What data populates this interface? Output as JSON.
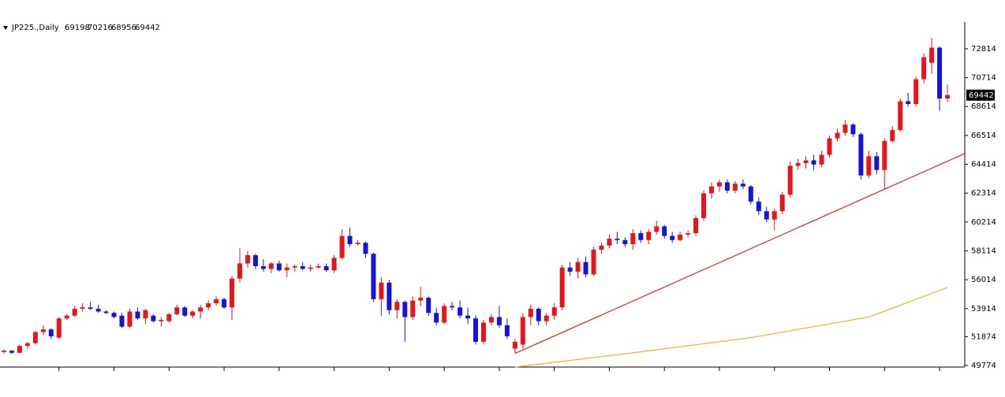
{
  "chart_data": {
    "type": "candlestick",
    "symbol": "JP225.,Daily",
    "up_color": "#e8141a",
    "down_color": "#1414d8",
    "ylim": [
      49660,
      74760
    ],
    "yticks": [
      49774,
      51874,
      53914,
      56014,
      58114,
      60214,
      62314,
      64414,
      66514,
      68614,
      70714,
      72814
    ],
    "xticks": [
      7,
      14,
      21,
      28,
      35,
      42,
      49,
      56,
      63,
      70,
      77,
      84,
      91,
      98,
      105,
      112,
      119
    ],
    "ohlc": [
      [
        50750,
        50950,
        50650,
        50850
      ],
      [
        50850,
        50900,
        50600,
        50700
      ],
      [
        50700,
        51300,
        50650,
        51200
      ],
      [
        51200,
        51500,
        51000,
        51400
      ],
      [
        51400,
        52300,
        51300,
        52200
      ],
      [
        52200,
        52700,
        52000,
        52400
      ],
      [
        52400,
        52500,
        51700,
        51900
      ],
      [
        51800,
        53300,
        51700,
        53200
      ],
      [
        53200,
        53500,
        53100,
        53400
      ],
      [
        53400,
        54100,
        53300,
        53900
      ],
      [
        53900,
        54300,
        53700,
        54000
      ],
      [
        54000,
        54400,
        53800,
        53900
      ],
      [
        53900,
        54200,
        53600,
        53700
      ],
      [
        53700,
        53800,
        53500,
        53600
      ],
      [
        53600,
        53700,
        53200,
        53300
      ],
      [
        53400,
        53600,
        52500,
        52600
      ],
      [
        52600,
        53900,
        52500,
        53700
      ],
      [
        53700,
        54000,
        53100,
        53200
      ],
      [
        53200,
        53900,
        52800,
        53800
      ],
      [
        53400,
        53500,
        52900,
        53000
      ],
      [
        53000,
        53300,
        52600,
        53100
      ],
      [
        53000,
        53600,
        52900,
        53500
      ],
      [
        53500,
        54200,
        53400,
        54000
      ],
      [
        54000,
        54100,
        53300,
        53400
      ],
      [
        53400,
        53800,
        53200,
        53700
      ],
      [
        53700,
        54200,
        53200,
        54000
      ],
      [
        54000,
        54500,
        53800,
        54300
      ],
      [
        54300,
        54800,
        54100,
        54600
      ],
      [
        54600,
        54700,
        53900,
        54000
      ],
      [
        54000,
        56300,
        53100,
        56100
      ],
      [
        56100,
        58300,
        55800,
        57200
      ],
      [
        57200,
        58100,
        56900,
        57800
      ],
      [
        57800,
        57900,
        56800,
        57000
      ],
      [
        57000,
        57500,
        56600,
        56800
      ],
      [
        56800,
        57300,
        56500,
        57200
      ],
      [
        57200,
        57400,
        56600,
        56700
      ],
      [
        56700,
        57200,
        56200,
        56900
      ],
      [
        56900,
        57100,
        56600,
        57000
      ],
      [
        57000,
        57300,
        56700,
        56800
      ],
      [
        56800,
        57100,
        56600,
        56900
      ],
      [
        56900,
        57200,
        56800,
        57000
      ],
      [
        57000,
        57200,
        56600,
        56700
      ],
      [
        56700,
        57800,
        56500,
        57600
      ],
      [
        57600,
        59700,
        57500,
        59200
      ],
      [
        59200,
        59800,
        58400,
        58600
      ],
      [
        58600,
        58900,
        58500,
        58700
      ],
      [
        58700,
        58800,
        57600,
        57900
      ],
      [
        57900,
        58000,
        54400,
        54600
      ],
      [
        54600,
        56200,
        53400,
        55800
      ],
      [
        55800,
        56000,
        53500,
        53800
      ],
      [
        53800,
        54600,
        53200,
        54400
      ],
      [
        54400,
        54500,
        51500,
        53300
      ],
      [
        53300,
        54800,
        53100,
        54500
      ],
      [
        54500,
        55500,
        54100,
        54700
      ],
      [
        54700,
        54800,
        53400,
        53600
      ],
      [
        53600,
        54000,
        52700,
        52900
      ],
      [
        52900,
        54300,
        52800,
        54100
      ],
      [
        54100,
        54400,
        53800,
        54000
      ],
      [
        54000,
        54500,
        53200,
        53400
      ],
      [
        53400,
        54000,
        52800,
        53200
      ],
      [
        53200,
        53400,
        51300,
        51500
      ],
      [
        51500,
        53100,
        51300,
        52900
      ],
      [
        52900,
        53500,
        52700,
        53300
      ],
      [
        53300,
        54100,
        52500,
        52700
      ],
      [
        52700,
        53200,
        51700,
        51900
      ],
      [
        51000,
        51700,
        50700,
        51500
      ],
      [
        51300,
        53600,
        51000,
        53300
      ],
      [
        53300,
        54200,
        52700,
        53900
      ],
      [
        53900,
        54000,
        52700,
        53000
      ],
      [
        53000,
        53600,
        52700,
        53400
      ],
      [
        53400,
        54300,
        53100,
        54000
      ],
      [
        54000,
        57100,
        53800,
        56900
      ],
      [
        56900,
        57300,
        56300,
        56600
      ],
      [
        56600,
        57600,
        56100,
        57300
      ],
      [
        57300,
        57700,
        56200,
        56400
      ],
      [
        56400,
        58400,
        56300,
        58200
      ],
      [
        58200,
        58700,
        57900,
        58500
      ],
      [
        58500,
        59300,
        58300,
        59000
      ],
      [
        59000,
        59500,
        58600,
        58900
      ],
      [
        58900,
        59100,
        58400,
        58600
      ],
      [
        58600,
        59700,
        58200,
        59400
      ],
      [
        59400,
        59600,
        58700,
        58900
      ],
      [
        58900,
        59700,
        58600,
        59500
      ],
      [
        59500,
        60300,
        59300,
        59900
      ],
      [
        59900,
        60000,
        59000,
        59200
      ],
      [
        59200,
        59500,
        58700,
        58900
      ],
      [
        58900,
        59500,
        58800,
        59300
      ],
      [
        59300,
        59600,
        59100,
        59400
      ],
      [
        59400,
        60700,
        59200,
        60500
      ],
      [
        60500,
        62500,
        60300,
        62300
      ],
      [
        62300,
        63100,
        61900,
        62800
      ],
      [
        62800,
        63300,
        62400,
        63100
      ],
      [
        63100,
        63300,
        62300,
        62500
      ],
      [
        62500,
        63200,
        62300,
        63000
      ],
      [
        63000,
        63300,
        62600,
        62800
      ],
      [
        62800,
        62900,
        61500,
        61700
      ],
      [
        61700,
        62000,
        60700,
        61000
      ],
      [
        61000,
        61300,
        60200,
        60400
      ],
      [
        60400,
        61200,
        59600,
        61000
      ],
      [
        61000,
        62400,
        60800,
        62200
      ],
      [
        62200,
        64600,
        62000,
        64300
      ],
      [
        64300,
        64800,
        64000,
        64500
      ],
      [
        64500,
        65000,
        64100,
        64700
      ],
      [
        64700,
        65100,
        64000,
        64400
      ],
      [
        64400,
        65400,
        64200,
        65100
      ],
      [
        65100,
        66500,
        64900,
        66300
      ],
      [
        66300,
        67000,
        66100,
        66700
      ],
      [
        66700,
        67600,
        66500,
        67300
      ],
      [
        67300,
        67400,
        66400,
        66600
      ],
      [
        66600,
        66700,
        63300,
        63600
      ],
      [
        63600,
        65400,
        63400,
        65000
      ],
      [
        65000,
        65300,
        63700,
        64000
      ],
      [
        64000,
        66300,
        62600,
        66100
      ],
      [
        66100,
        67200,
        66000,
        66900
      ],
      [
        66900,
        69200,
        66800,
        69000
      ],
      [
        69000,
        69600,
        68600,
        68800
      ],
      [
        68800,
        70800,
        68600,
        70600
      ],
      [
        70600,
        72500,
        70300,
        72200
      ],
      [
        71800,
        73600,
        71000,
        72900
      ],
      [
        72900,
        73000,
        68300,
        69198
      ],
      [
        69198,
        70216,
        68956,
        69442
      ]
    ],
    "trend_line": {
      "color": "#e02020",
      "points": [
        [
          65,
          50650
        ],
        [
          112,
          62600
        ]
      ]
    },
    "moving_average": {
      "color": "#f0b030",
      "points": [
        [
          65,
          49660
        ],
        [
          80,
          50700
        ],
        [
          95,
          51800
        ],
        [
          110,
          53300
        ],
        [
          120,
          55450
        ]
      ]
    }
  }
}
